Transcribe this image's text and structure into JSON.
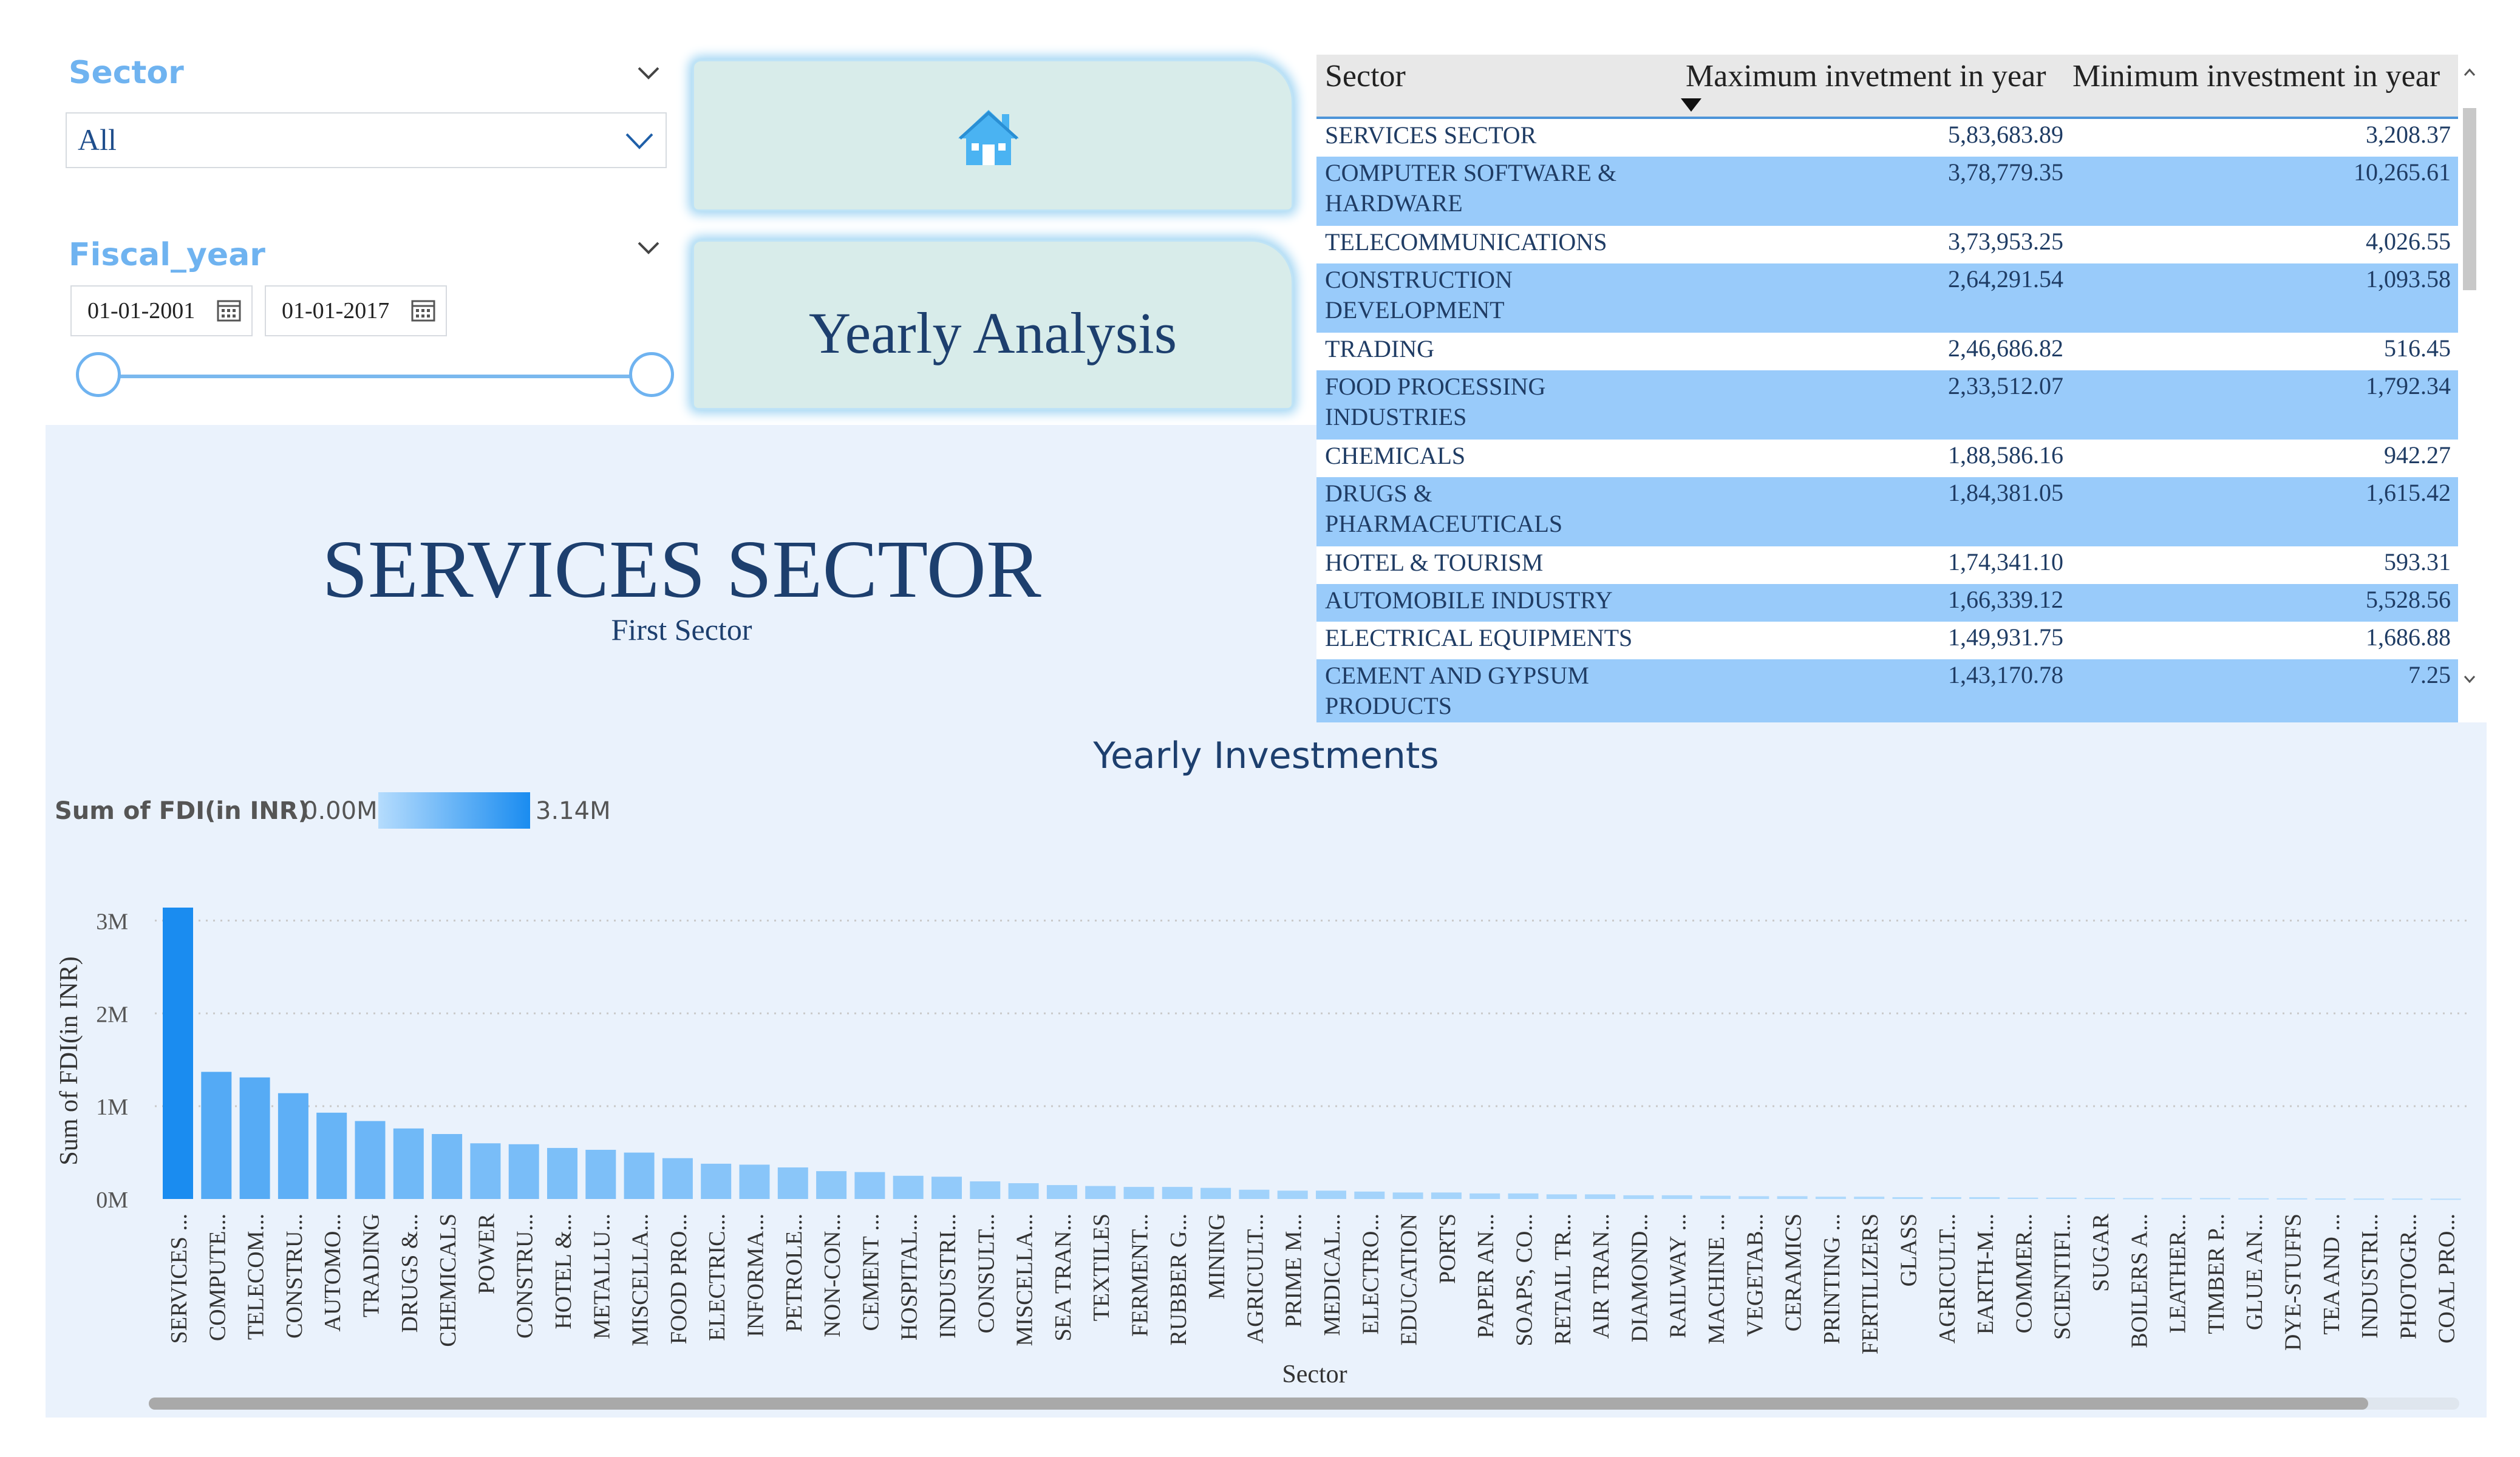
{
  "slicers": {
    "sector": {
      "title": "Sector",
      "value": "All"
    },
    "fiscal_year": {
      "title": "Fiscal_year",
      "start": "01-01-2001",
      "end": "01-01-2017",
      "range": [
        0,
        1
      ]
    }
  },
  "buttons": {
    "home_icon": "home-icon",
    "yearly_label": "Yearly Analysis"
  },
  "kpi": {
    "value": "SERVICES SECTOR",
    "label": "First Sector"
  },
  "table": {
    "headers": [
      "Sector",
      "Maximum invetment in year",
      "Minimum investment in year"
    ],
    "sort_column": 1,
    "rows": [
      {
        "sector": [
          "SERVICES SECTOR"
        ],
        "max": "5,83,683.89",
        "min": "3,208.37"
      },
      {
        "sector": [
          "COMPUTER SOFTWARE &",
          "HARDWARE"
        ],
        "max": "3,78,779.35",
        "min": "10,265.61"
      },
      {
        "sector": [
          "TELECOMMUNICATIONS"
        ],
        "max": "3,73,953.25",
        "min": "4,026.55"
      },
      {
        "sector": [
          "CONSTRUCTION",
          "DEVELOPMENT"
        ],
        "max": "2,64,291.54",
        "min": "1,093.58"
      },
      {
        "sector": [
          "TRADING"
        ],
        "max": "2,46,686.82",
        "min": "516.45"
      },
      {
        "sector": [
          "FOOD PROCESSING",
          "INDUSTRIES"
        ],
        "max": "2,33,512.07",
        "min": "1,792.34"
      },
      {
        "sector": [
          "CHEMICALS"
        ],
        "max": "1,88,586.16",
        "min": "942.27"
      },
      {
        "sector": [
          "DRUGS &",
          "PHARMACEUTICALS"
        ],
        "max": "1,84,381.05",
        "min": "1,615.42"
      },
      {
        "sector": [
          "HOTEL & TOURISM"
        ],
        "max": "1,74,341.10",
        "min": "593.31"
      },
      {
        "sector": [
          "AUTOMOBILE INDUSTRY"
        ],
        "max": "1,66,339.12",
        "min": "5,528.56"
      },
      {
        "sector": [
          "ELECTRICAL EQUIPMENTS"
        ],
        "max": "1,49,931.75",
        "min": "1,686.88"
      },
      {
        "sector": [
          "CEMENT AND GYPSUM",
          "PRODUCTS"
        ],
        "max": "1,43,170.78",
        "min": "7.25"
      }
    ]
  },
  "colors": {
    "bar_max": "#1a8cf0",
    "bar_min": "#a8d4fc",
    "title": "#1d3f6e",
    "row_alt": "#99cbfa"
  },
  "chart_data": {
    "type": "bar",
    "title": "Yearly Investments",
    "xlabel": "Sector",
    "ylabel": "Sum of FDI(in INR)",
    "legend": {
      "title": "Sum of FDI(in INR)",
      "min_label": "0.00M",
      "max_label": "3.14M"
    },
    "ylim": [
      0,
      3.14
    ],
    "yticks": [
      "0M",
      "1M",
      "2M",
      "3M"
    ],
    "categories": [
      "SERVICES ...",
      "COMPUTE...",
      "TELECOM...",
      "CONSTRU...",
      "AUTOMO...",
      "TRADING",
      "DRUGS &...",
      "CHEMICALS",
      "POWER",
      "CONSTRU...",
      "HOTEL &...",
      "METALLU...",
      "MISCELLA...",
      "FOOD PRO...",
      "ELECTRIC...",
      "INFORMA...",
      "PETROLE...",
      "NON-CON...",
      "CEMENT ...",
      "HOSPITAL...",
      "INDUSTRI...",
      "CONSULT...",
      "MISCELLA...",
      "SEA TRAN...",
      "TEXTILES",
      "FERMENT...",
      "RUBBER G...",
      "MINING",
      "AGRICULT...",
      "PRIME M...",
      "MEDICAL...",
      "ELECTRO...",
      "EDUCATION",
      "PORTS",
      "PAPER AN...",
      "SOAPS, CO...",
      "RETAIL TR...",
      "AIR TRAN...",
      "DIAMOND...",
      "RAILWAY ...",
      "MACHINE ...",
      "VEGETAB...",
      "CERAMICS",
      "PRINTING ...",
      "FERTILIZERS",
      "GLASS",
      "AGRICULT...",
      "EARTH-M...",
      "COMMER...",
      "SCIENTIFI...",
      "SUGAR",
      "BOILERS A...",
      "LEATHER...",
      "TIMBER P...",
      "GLUE AN...",
      "DYE-STUFFS",
      "TEA AND ...",
      "INDUSTRI...",
      "PHOTOGR...",
      "COAL PRO..."
    ],
    "values": [
      3.14,
      1.37,
      1.31,
      1.14,
      0.93,
      0.84,
      0.76,
      0.7,
      0.6,
      0.59,
      0.55,
      0.53,
      0.5,
      0.44,
      0.38,
      0.37,
      0.34,
      0.3,
      0.29,
      0.25,
      0.24,
      0.19,
      0.17,
      0.15,
      0.14,
      0.13,
      0.13,
      0.12,
      0.1,
      0.09,
      0.09,
      0.08,
      0.07,
      0.07,
      0.06,
      0.06,
      0.05,
      0.05,
      0.04,
      0.04,
      0.035,
      0.03,
      0.03,
      0.025,
      0.025,
      0.02,
      0.02,
      0.02,
      0.015,
      0.015,
      0.012,
      0.01,
      0.01,
      0.01,
      0.008,
      0.008,
      0.006,
      0.005,
      0.005,
      0.004
    ],
    "grid": true
  }
}
